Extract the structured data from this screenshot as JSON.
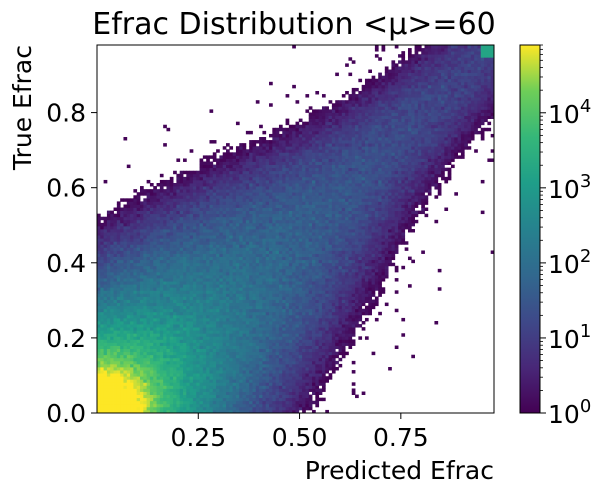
{
  "chart_data": {
    "type": "heatmap",
    "title": "Efrac Distribution <μ>=60",
    "xlabel": "Predicted Efrac",
    "ylabel": "True Efrac",
    "xlim": [
      0.0,
      0.98
    ],
    "ylim": [
      0.0,
      0.98
    ],
    "x_ticks": [
      {
        "value": 0.25,
        "label": "0.25"
      },
      {
        "value": 0.5,
        "label": "0.50"
      },
      {
        "value": 0.75,
        "label": "0.75"
      }
    ],
    "y_ticks": [
      {
        "value": 0.0,
        "label": "0.0"
      },
      {
        "value": 0.2,
        "label": "0.2"
      },
      {
        "value": 0.4,
        "label": "0.4"
      },
      {
        "value": 0.6,
        "label": "0.6"
      },
      {
        "value": 0.8,
        "label": "0.8"
      }
    ],
    "bins": [
      120,
      120
    ],
    "colormap": "viridis",
    "color_scale": "log",
    "colorbar": {
      "range": [
        1,
        80000
      ],
      "ticks": [
        {
          "value": 1,
          "base": "10",
          "exp": "0"
        },
        {
          "value": 10,
          "base": "10",
          "exp": "1"
        },
        {
          "value": 100,
          "base": "10",
          "exp": "2"
        },
        {
          "value": 1000,
          "base": "10",
          "exp": "3"
        },
        {
          "value": 10000,
          "base": "10",
          "exp": "4"
        }
      ]
    },
    "distribution": {
      "description": "counts concentrated along the diagonal; peak near the origin",
      "peak_count": 80000
    }
  }
}
